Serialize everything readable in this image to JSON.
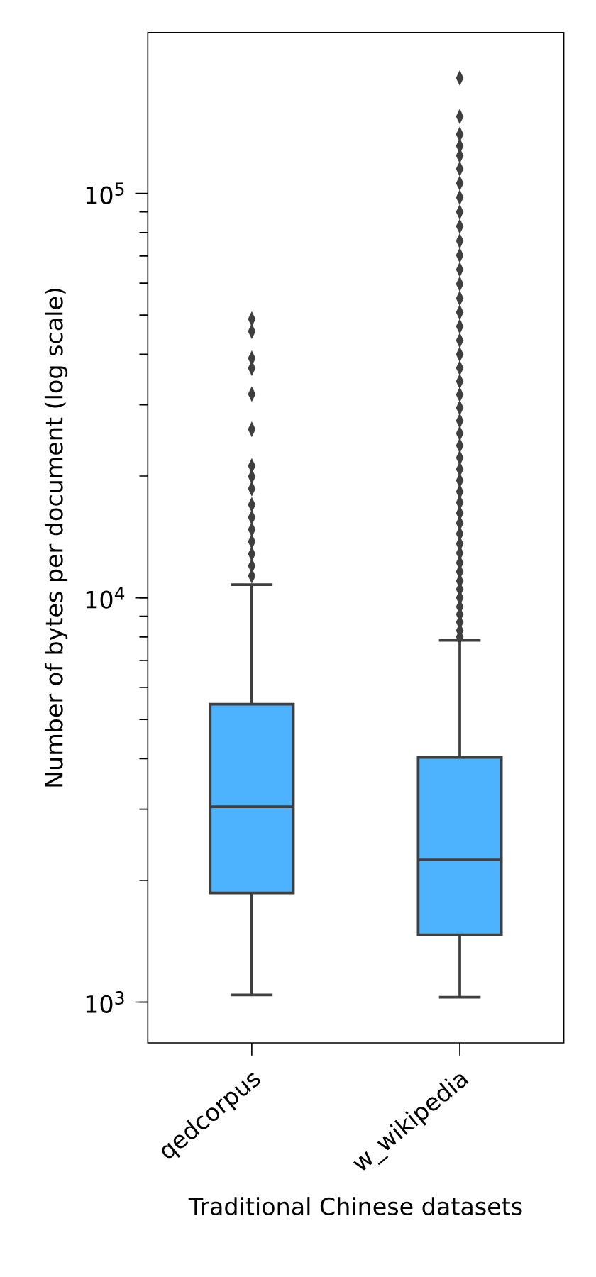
{
  "chart_data": {
    "type": "box",
    "xlabel": "Traditional Chinese datasets",
    "ylabel": "Number of bytes per document (log scale)",
    "categories": [
      "qedcorpus",
      "w_wikipedia"
    ],
    "color": "#4db3ff",
    "log": "y",
    "marker": "diamond",
    "grid": false,
    "ylim": [
      793,
      250000
    ],
    "yticks": [
      {
        "value": 1000,
        "label": "10$^{3}$"
      },
      {
        "value": 10000,
        "label": "10$^{4}$"
      },
      {
        "value": 100000,
        "label": "10$^{5}$"
      }
    ],
    "boxes": [
      {
        "low": 1042,
        "q1": 1862,
        "median": 3043,
        "q3": 5455,
        "high": 10770,
        "outliers": [
          11330,
          11990,
          12840,
          13770,
          14760,
          15810,
          16980,
          18620,
          19950,
          21190,
          26100,
          31900,
          36980,
          39100,
          45600,
          48900
        ]
      },
      {
        "low": 1028,
        "q1": 1468,
        "median": 2248,
        "q3": 4030,
        "high": 7850,
        "outliers": [
          8000,
          8300,
          8700,
          9100,
          9500,
          10000,
          10500,
          11000,
          11600,
          12200,
          12900,
          13600,
          14400,
          15300,
          16200,
          17200,
          18300,
          19500,
          20800,
          22200,
          23800,
          25500,
          27400,
          29500,
          31800,
          34300,
          37000,
          40000,
          43300,
          46900,
          50800,
          55000,
          59700,
          64800,
          70300,
          76300,
          82900,
          90000,
          97800,
          106000,
          115000,
          124000,
          131000,
          140000,
          155000,
          193000
        ]
      }
    ]
  }
}
